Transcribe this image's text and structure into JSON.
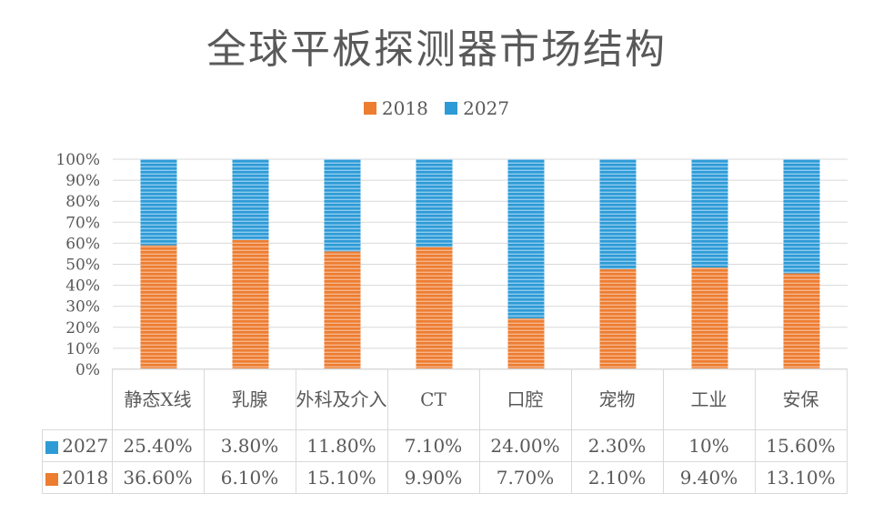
{
  "chart_data": {
    "type": "bar",
    "stacked": "percent",
    "title": "全球平板探测器市场结构",
    "categories": [
      "静态X线",
      "乳腺",
      "外科及介入",
      "CT",
      "口腔",
      "宠物",
      "工业",
      "安保"
    ],
    "series": [
      {
        "name": "2018",
        "color": "#ED7D31",
        "values": [
          36.6,
          6.1,
          15.1,
          9.9,
          7.7,
          2.1,
          9.4,
          13.1
        ],
        "labels": [
          "36.60%",
          "6.10%",
          "15.10%",
          "9.90%",
          "7.70%",
          "2.10%",
          "9.40%",
          "13.10%"
        ]
      },
      {
        "name": "2027",
        "color": "#2E9BD6",
        "values": [
          25.4,
          3.8,
          11.8,
          7.1,
          24.0,
          2.3,
          10,
          15.6
        ],
        "labels": [
          "25.40%",
          "3.80%",
          "11.80%",
          "7.10%",
          "24.00%",
          "2.30%",
          "10%",
          "15.60%"
        ]
      }
    ],
    "yticks": [
      "0%",
      "10%",
      "20%",
      "30%",
      "40%",
      "50%",
      "60%",
      "70%",
      "80%",
      "90%",
      "100%"
    ],
    "ylim": [
      0,
      100
    ],
    "grid": true,
    "legend_position": "top",
    "data_table": true
  }
}
